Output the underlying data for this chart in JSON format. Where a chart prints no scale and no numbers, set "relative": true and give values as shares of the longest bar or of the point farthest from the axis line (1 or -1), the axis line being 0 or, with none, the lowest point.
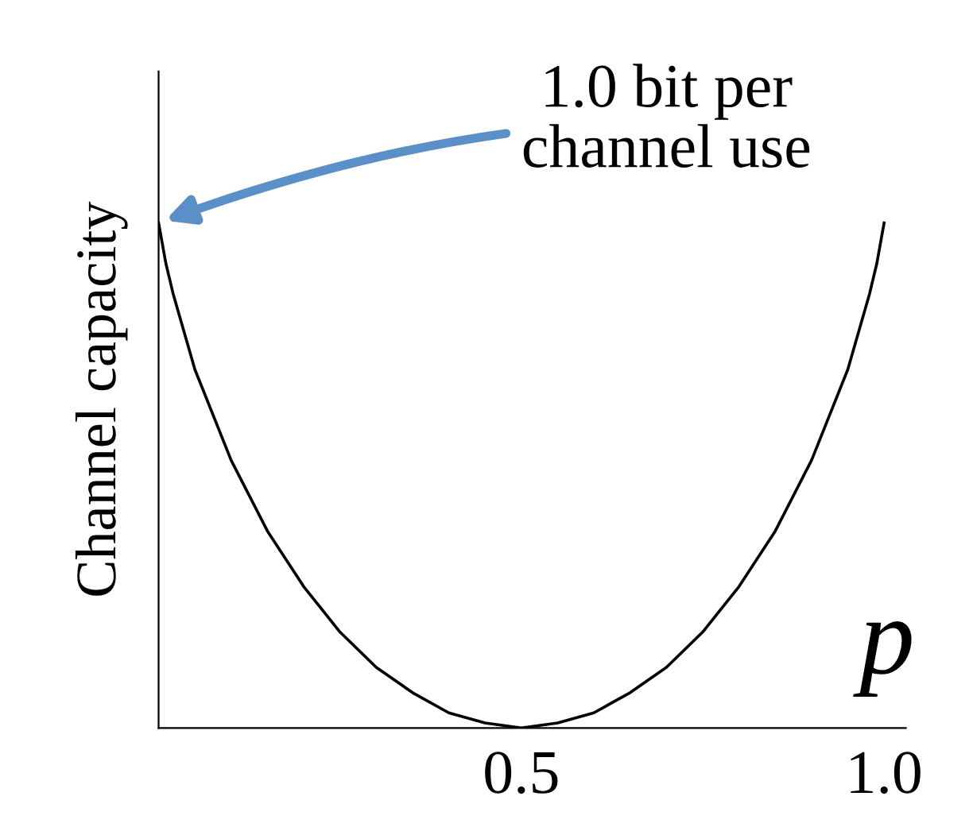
{
  "chart_data": {
    "type": "line",
    "relative": true,
    "ylabel": "Channel capacity",
    "xlabel": "p",
    "x": [
      0,
      0.01,
      0.02,
      0.05,
      0.1,
      0.15,
      0.2,
      0.25,
      0.3,
      0.35,
      0.4,
      0.45,
      0.5,
      0.55,
      0.6,
      0.65,
      0.7,
      0.75,
      0.8,
      0.85,
      0.9,
      0.95,
      0.98,
      0.99,
      1.0
    ],
    "series": [
      {
        "color": "#000000",
        "values": [
          1,
          0.92,
          0.86,
          0.71,
          0.53,
          0.39,
          0.28,
          0.19,
          0.12,
          0.07,
          0.03,
          0.01,
          0,
          0.01,
          0.03,
          0.07,
          0.12,
          0.19,
          0.28,
          0.39,
          0.53,
          0.71,
          0.86,
          0.92,
          1
        ]
      }
    ],
    "xlim": [
      0,
      1.03
    ],
    "xticks": [
      0.5,
      {
        "value": 1.0,
        "label": "1.0"
      }
    ],
    "tick_labels": "x",
    "grid": false,
    "legend": false,
    "marker": "none",
    "line_style": "solid",
    "annotations": [
      "1.0 bit per\nchannel use"
    ]
  }
}
